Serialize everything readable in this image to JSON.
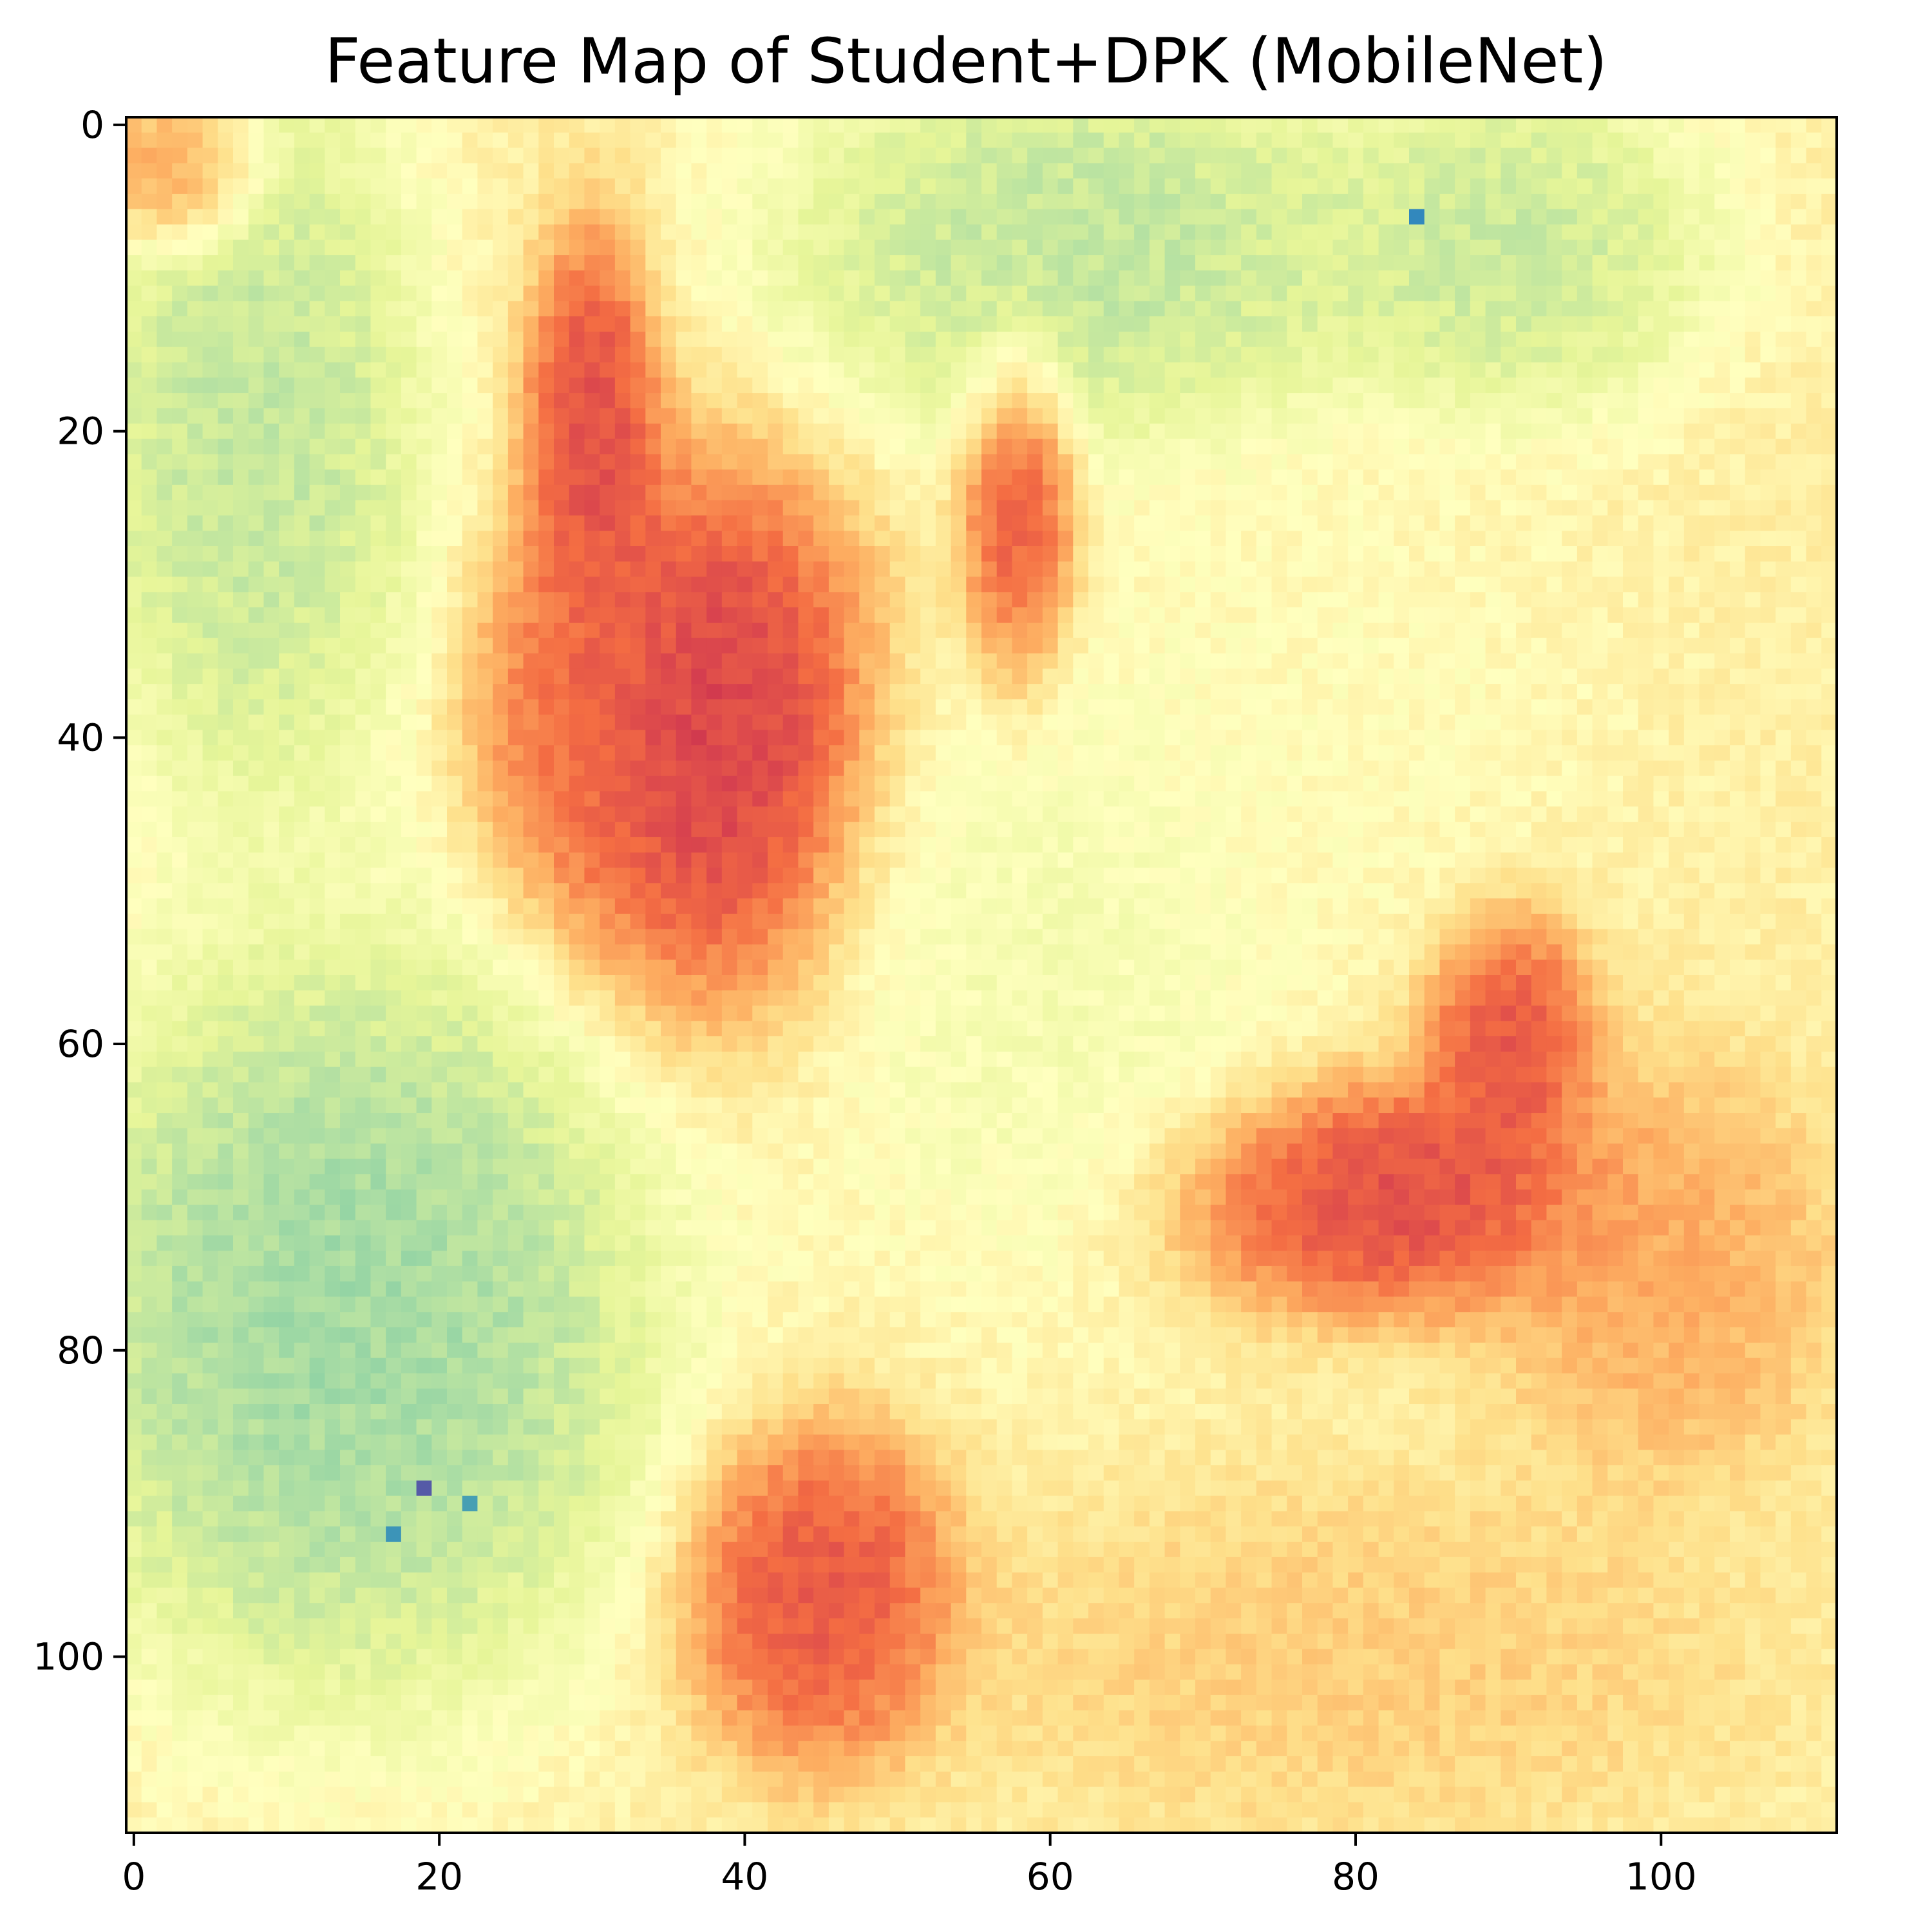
{
  "chart_data": {
    "type": "heatmap",
    "title": "Feature Map of Student+DPK (MobileNet)",
    "xlabel": "",
    "ylabel": "",
    "grid": false,
    "legend": "none",
    "colormap": "Spectral",
    "colormap_stops": [
      "#9e0142",
      "#d53e4f",
      "#f46d43",
      "#fdae61",
      "#fee08b",
      "#ffffbf",
      "#e6f598",
      "#abdda4",
      "#66c2a5",
      "#3288bd",
      "#5e4fa2"
    ],
    "grid_size": [
      112,
      112
    ],
    "xlim": [
      -0.5,
      111.5
    ],
    "ylim": [
      111.5,
      -0.5
    ],
    "y_inverted": true,
    "x_ticks": [
      0,
      20,
      40,
      60,
      80,
      100
    ],
    "x_tick_labels": [
      "0",
      "20",
      "40",
      "60",
      "80",
      "100"
    ],
    "y_ticks": [
      0,
      20,
      40,
      60,
      80,
      100
    ],
    "y_tick_labels": [
      "0",
      "20",
      "40",
      "60",
      "80",
      "100"
    ],
    "value_range": [
      0,
      1
    ],
    "background_level": 0.45,
    "regions": [
      {
        "shape": "ellipse",
        "cx": 38,
        "cy": 40,
        "rx": 10,
        "ry": 16,
        "value": 0.04
      },
      {
        "shape": "ellipse",
        "cx": 30,
        "cy": 20,
        "rx": 4,
        "ry": 12,
        "value": 0.08
      },
      {
        "shape": "ellipse",
        "cx": 58,
        "cy": 26,
        "rx": 3.5,
        "ry": 11,
        "value": 0.1
      },
      {
        "shape": "ellipse",
        "cx": 30,
        "cy": 38,
        "rx": 7,
        "ry": 12,
        "value": 0.18
      },
      {
        "shape": "ellipse",
        "cx": 82,
        "cy": 70,
        "rx": 14,
        "ry": 7,
        "value": 0.08
      },
      {
        "shape": "ellipse",
        "cx": 90,
        "cy": 60,
        "rx": 5,
        "ry": 8,
        "value": 0.1
      },
      {
        "shape": "ellipse",
        "cx": 45,
        "cy": 96,
        "rx": 8,
        "ry": 10,
        "value": 0.1
      },
      {
        "shape": "ellipse",
        "cx": 100,
        "cy": 75,
        "rx": 10,
        "ry": 12,
        "value": 0.28
      },
      {
        "shape": "ellipse",
        "cx": 8,
        "cy": 20,
        "rx": 10,
        "ry": 22,
        "value": 0.7
      },
      {
        "shape": "ellipse",
        "cx": 14,
        "cy": 78,
        "rx": 18,
        "ry": 22,
        "value": 0.76
      },
      {
        "shape": "ellipse",
        "cx": 62,
        "cy": 8,
        "rx": 18,
        "ry": 12,
        "value": 0.7
      },
      {
        "shape": "ellipse",
        "cx": 90,
        "cy": 8,
        "rx": 12,
        "ry": 10,
        "value": 0.68
      },
      {
        "shape": "ellipse",
        "cx": 60,
        "cy": 55,
        "rx": 14,
        "ry": 20,
        "value": 0.55
      },
      {
        "shape": "ellipse",
        "cx": 78,
        "cy": 38,
        "rx": 16,
        "ry": 14,
        "value": 0.5
      },
      {
        "shape": "ellipse",
        "cx": 3,
        "cy": 3,
        "rx": 5,
        "ry": 5,
        "value": 0.2
      },
      {
        "shape": "ellipse",
        "cx": 80,
        "cy": 100,
        "rx": 22,
        "ry": 10,
        "value": 0.35
      }
    ],
    "anomalies": [
      {
        "x": 19,
        "y": 89,
        "value": 0.98
      },
      {
        "x": 84,
        "y": 6,
        "value": 0.9
      },
      {
        "x": 17,
        "y": 92,
        "value": 0.88
      },
      {
        "x": 22,
        "y": 90,
        "value": 0.86
      }
    ]
  }
}
